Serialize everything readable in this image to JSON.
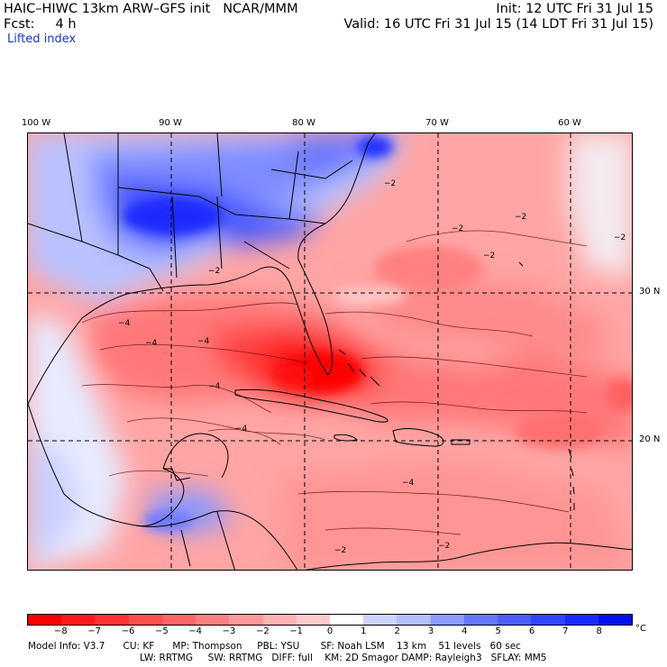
{
  "header": {
    "model_title": "HAIC–HIWC 13km ARW–GFS init   NCAR/MMM",
    "init_time": "Init: 12 UTC Fri 31 Jul 15",
    "forecast_label": "Fcst:     4 h",
    "valid_time": "Valid: 16 UTC Fri 31 Jul 15 (14 LDT Fri 31 Jul 15)",
    "field_name": "Lifted index"
  },
  "axes": {
    "longitudes": [
      "100 W",
      "90 W",
      "80 W",
      "70 W",
      "60 W"
    ],
    "latitudes": [
      "30 N",
      "20 N"
    ]
  },
  "colorbar": {
    "ticks": [
      "−8",
      "−7",
      "−6",
      "−5",
      "−4",
      "−3",
      "−2",
      "−1",
      "0",
      "1",
      "2",
      "3",
      "4",
      "5",
      "6",
      "7",
      "8"
    ],
    "unit": "°C",
    "colors": [
      "#ff0000",
      "#ff1a1a",
      "#ff3333",
      "#ff4d4d",
      "#ff6666",
      "#ff8080",
      "#ff9999",
      "#ffb3b3",
      "#ffcccc",
      "#ffffff",
      "#ccd6ff",
      "#b3bfff",
      "#8c9cff",
      "#6677ff",
      "#4d5eff",
      "#3344ff",
      "#1a2bff",
      "#0010ee"
    ]
  },
  "contour_labels": [
    "−2",
    "−2",
    "−2",
    "−2",
    "−2",
    "−2",
    "−4",
    "−4",
    "−4",
    "−4",
    "−4",
    "−4",
    "−2",
    "−2"
  ],
  "model_info": {
    "line1": "Model Info: V3.7      CU: KF      MP: Thompson     PBL: YSU       SF: Noah LSM    13 km    51 levels   60 sec",
    "line2": "LW: RRTMG     SW: RRTMG   DIFF: full    KM: 2D Smagor DAMP: Rayleigh3   SFLAY: MM5"
  }
}
